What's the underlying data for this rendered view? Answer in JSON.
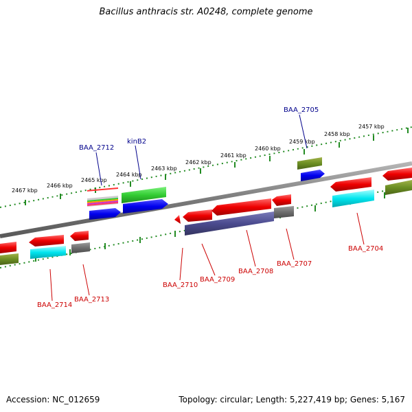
{
  "title": "Bacillus anthracis str. A0248, complete genome",
  "footer": {
    "accession": "Accession: NC_012659",
    "summary": "Topology: circular; Length: 5,227,419 bp; Genes: 5,167"
  },
  "ticks": [
    "2467 kbp",
    "2466 kbp",
    "2465 kbp",
    "2464 kbp",
    "2463 kbp",
    "2462 kbp",
    "2461 kbp",
    "2460 kbp",
    "2459 kbp",
    "2458 kbp",
    "2457 kbp"
  ],
  "genes_top": [
    "BAA_2712",
    "kinB2",
    "BAA_2705"
  ],
  "genes_bottom": [
    "BAA_2714",
    "BAA_2713",
    "BAA_2710",
    "BAA_2709",
    "BAA_2708",
    "BAA_2707",
    "BAA_2704"
  ],
  "colors": {
    "forward_label": "#00008b",
    "reverse_label": "#cc0000",
    "backbone": "#8a8a8a",
    "ruler": "#228b22"
  }
}
